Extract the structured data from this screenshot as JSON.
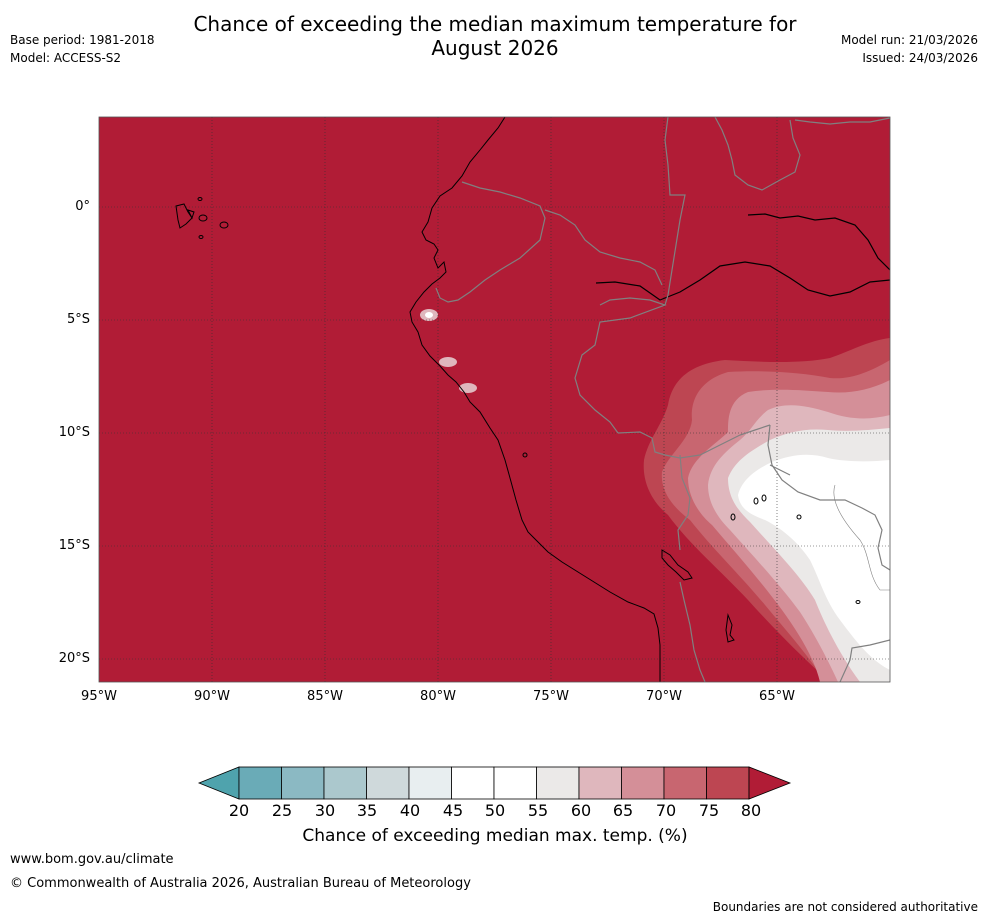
{
  "title_line1": "Chance of exceeding the median maximum temperature for",
  "title_line2": "August 2026",
  "base_period": "Base period: 1981-2018",
  "model": "Model: ACCESS-S2",
  "model_run": "Model run: 21/03/2026",
  "issued": "Issued: 24/03/2026",
  "lat_labels": [
    "0°",
    "5°S",
    "10°S",
    "15°S",
    "20°S"
  ],
  "lon_labels": [
    "95°W",
    "90°W",
    "85°W",
    "80°W",
    "75°W",
    "70°W",
    "65°W"
  ],
  "colorbar": {
    "title": "Chance of exceeding median max. temp. (%)",
    "ticks": [
      "20",
      "25",
      "30",
      "35",
      "40",
      "45",
      "50",
      "55",
      "60",
      "65",
      "70",
      "75",
      "80"
    ],
    "colors": {
      "below20": "#4fa3ad",
      "c20_25": "#6aabb7",
      "c25_30": "#8bb9c3",
      "c30_35": "#abc8cd",
      "c35_40": "#cfd9db",
      "c40_45": "#e8eef0",
      "c45_50": "#ffffff",
      "c50_55": "#ffffff",
      "c55_60": "#ebe9e8",
      "c60_65": "#dfb7bd",
      "c65_70": "#d48f98",
      "c70_75": "#c86670",
      "c75_80": "#bd4652",
      "above80": "#b11c36"
    }
  },
  "map_colors": {
    "dominant": "#b11c36",
    "coast": "#000000",
    "border": "#808080"
  },
  "url": "www.bom.gov.au/climate",
  "copyright": "© Commonwealth of Australia 2026, Australian Bureau of Meteorology",
  "disclaimer": "Boundaries are not considered authoritative"
}
